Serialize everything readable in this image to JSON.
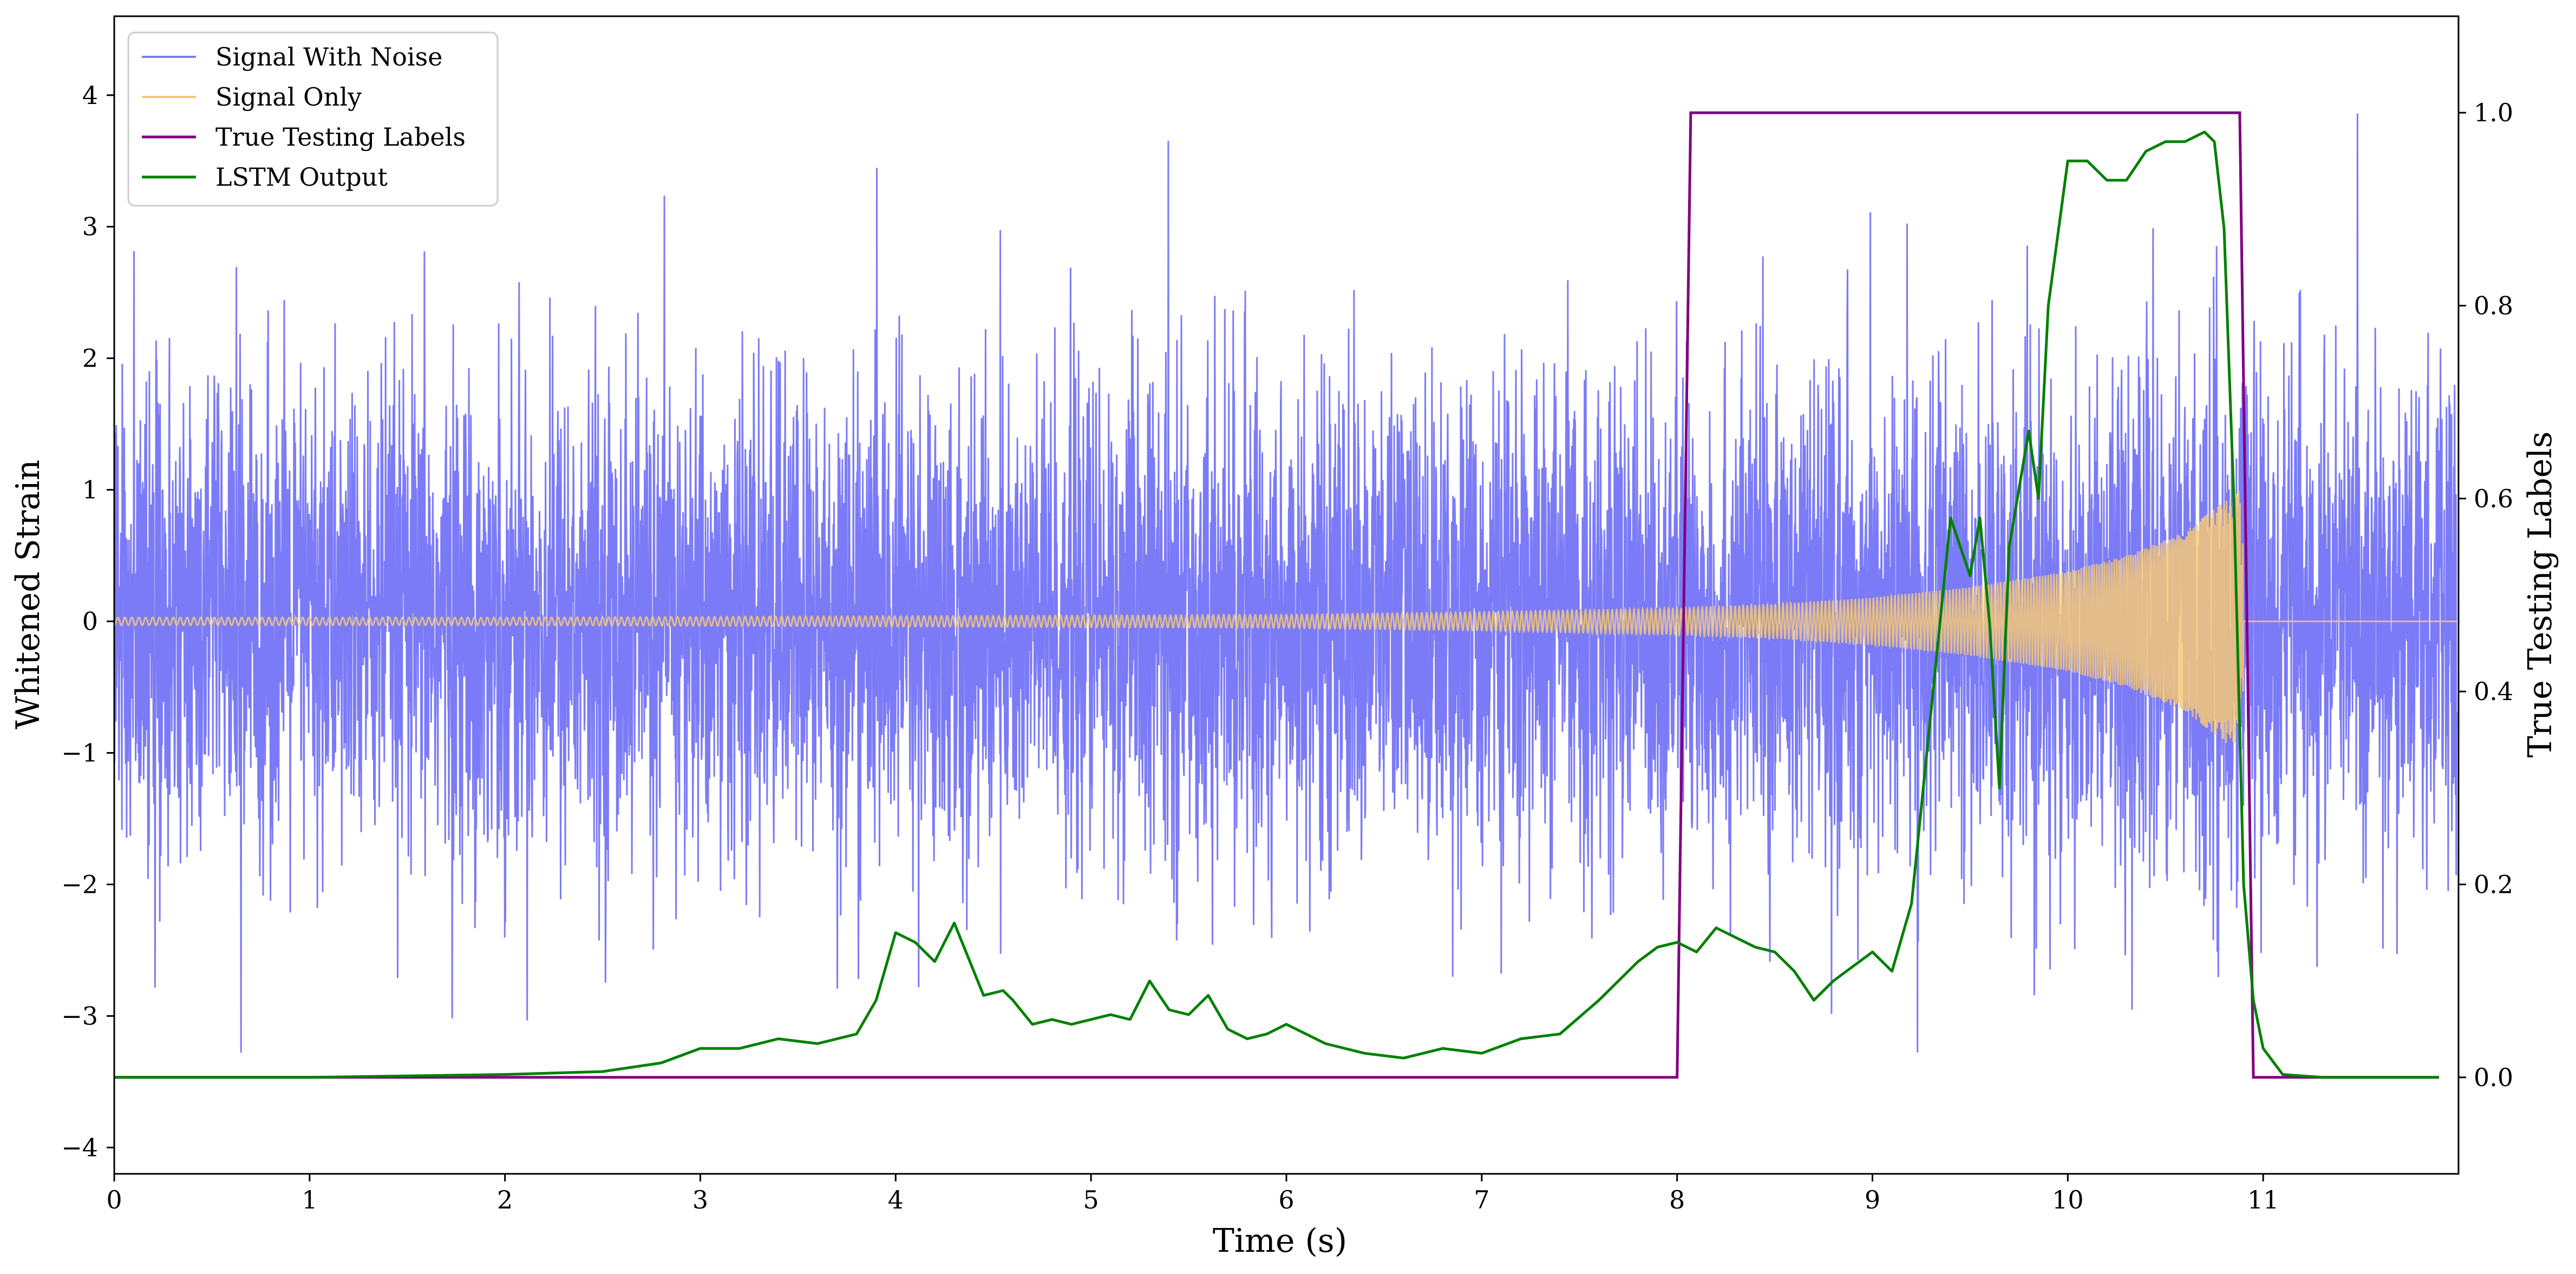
{
  "chart_data": {
    "type": "line",
    "xlabel": "Time (s)",
    "ylabel": "Whitened Strain",
    "y2label": "True Testing Labels",
    "xlim": [
      0,
      12
    ],
    "ylim": [
      -4.2,
      4.6
    ],
    "y2lim": [
      -0.1,
      1.1
    ],
    "xticks": [
      0,
      1,
      2,
      3,
      4,
      5,
      6,
      7,
      8,
      9,
      10,
      11
    ],
    "xtick_labels": [
      "0",
      "1",
      "2",
      "3",
      "4",
      "5",
      "6",
      "7",
      "8",
      "9",
      "10",
      "11"
    ],
    "yticks": [
      -4,
      -3,
      -2,
      -1,
      0,
      1,
      2,
      3,
      4
    ],
    "ytick_labels": [
      "−4",
      "−3",
      "−2",
      "−1",
      "0",
      "1",
      "2",
      "3",
      "4"
    ],
    "y2ticks": [
      0.0,
      0.2,
      0.4,
      0.6,
      0.8,
      1.0
    ],
    "y2tick_labels": [
      "0.0",
      "0.2",
      "0.4",
      "0.6",
      "0.8",
      "1.0"
    ],
    "grid": false,
    "legend_position": "top-left",
    "legend": [
      "Signal With Noise",
      "Signal Only",
      "True Testing Labels",
      "LSTM Output"
    ],
    "series": [
      {
        "name": "Signal With Noise",
        "axis": "left",
        "color": "#7b7bf7",
        "description_values": "whitened noise band, approx. between -2 and 2, spikes to about +/-3.3",
        "noise_std": 0.9
      },
      {
        "name": "Signal Only",
        "axis": "left",
        "color": "#f5c878",
        "envelope": {
          "t": [
            0,
            2,
            4,
            6,
            7,
            8,
            8.5,
            9,
            9.5,
            10,
            10.3,
            10.6,
            10.8,
            10.88,
            10.92,
            12
          ],
          "amp": [
            0.03,
            0.03,
            0.04,
            0.05,
            0.07,
            0.1,
            0.13,
            0.18,
            0.26,
            0.38,
            0.5,
            0.68,
            0.92,
            1.0,
            0.0,
            0.0
          ]
        },
        "merger_time": 10.9
      },
      {
        "name": "True Testing Labels",
        "axis": "right",
        "color": "#800080",
        "x": [
          0,
          8.0,
          8.07,
          10.88,
          10.95,
          11.9
        ],
        "y": [
          0,
          0,
          1,
          1,
          0,
          0
        ]
      },
      {
        "name": "LSTM Output",
        "axis": "right",
        "color": "#008000",
        "x": [
          0,
          1,
          2,
          2.5,
          2.8,
          3.0,
          3.2,
          3.4,
          3.6,
          3.8,
          3.9,
          4.0,
          4.1,
          4.2,
          4.3,
          4.45,
          4.55,
          4.6,
          4.7,
          4.8,
          4.9,
          5.0,
          5.1,
          5.2,
          5.3,
          5.4,
          5.5,
          5.6,
          5.7,
          5.8,
          5.9,
          6.0,
          6.2,
          6.4,
          6.6,
          6.8,
          7.0,
          7.2,
          7.4,
          7.6,
          7.8,
          7.9,
          8.0,
          8.1,
          8.2,
          8.3,
          8.4,
          8.5,
          8.6,
          8.7,
          8.8,
          8.9,
          9.0,
          9.1,
          9.2,
          9.3,
          9.4,
          9.5,
          9.55,
          9.6,
          9.65,
          9.7,
          9.8,
          9.85,
          9.9,
          10.0,
          10.1,
          10.2,
          10.3,
          10.4,
          10.5,
          10.6,
          10.7,
          10.75,
          10.8,
          10.85,
          10.9,
          10.95,
          11.0,
          11.1,
          11.3,
          11.9
        ],
        "y": [
          0.0,
          0.0,
          0.003,
          0.006,
          0.015,
          0.03,
          0.03,
          0.04,
          0.035,
          0.045,
          0.08,
          0.15,
          0.14,
          0.12,
          0.16,
          0.085,
          0.09,
          0.08,
          0.055,
          0.06,
          0.055,
          0.06,
          0.065,
          0.06,
          0.1,
          0.07,
          0.065,
          0.085,
          0.05,
          0.04,
          0.045,
          0.055,
          0.035,
          0.025,
          0.02,
          0.03,
          0.025,
          0.04,
          0.045,
          0.08,
          0.12,
          0.135,
          0.14,
          0.13,
          0.155,
          0.145,
          0.135,
          0.13,
          0.11,
          0.08,
          0.1,
          0.115,
          0.13,
          0.11,
          0.18,
          0.38,
          0.58,
          0.52,
          0.58,
          0.47,
          0.3,
          0.55,
          0.67,
          0.6,
          0.8,
          0.95,
          0.95,
          0.93,
          0.93,
          0.96,
          0.97,
          0.97,
          0.98,
          0.97,
          0.88,
          0.6,
          0.2,
          0.08,
          0.03,
          0.003,
          0.0,
          0.0
        ]
      }
    ]
  }
}
